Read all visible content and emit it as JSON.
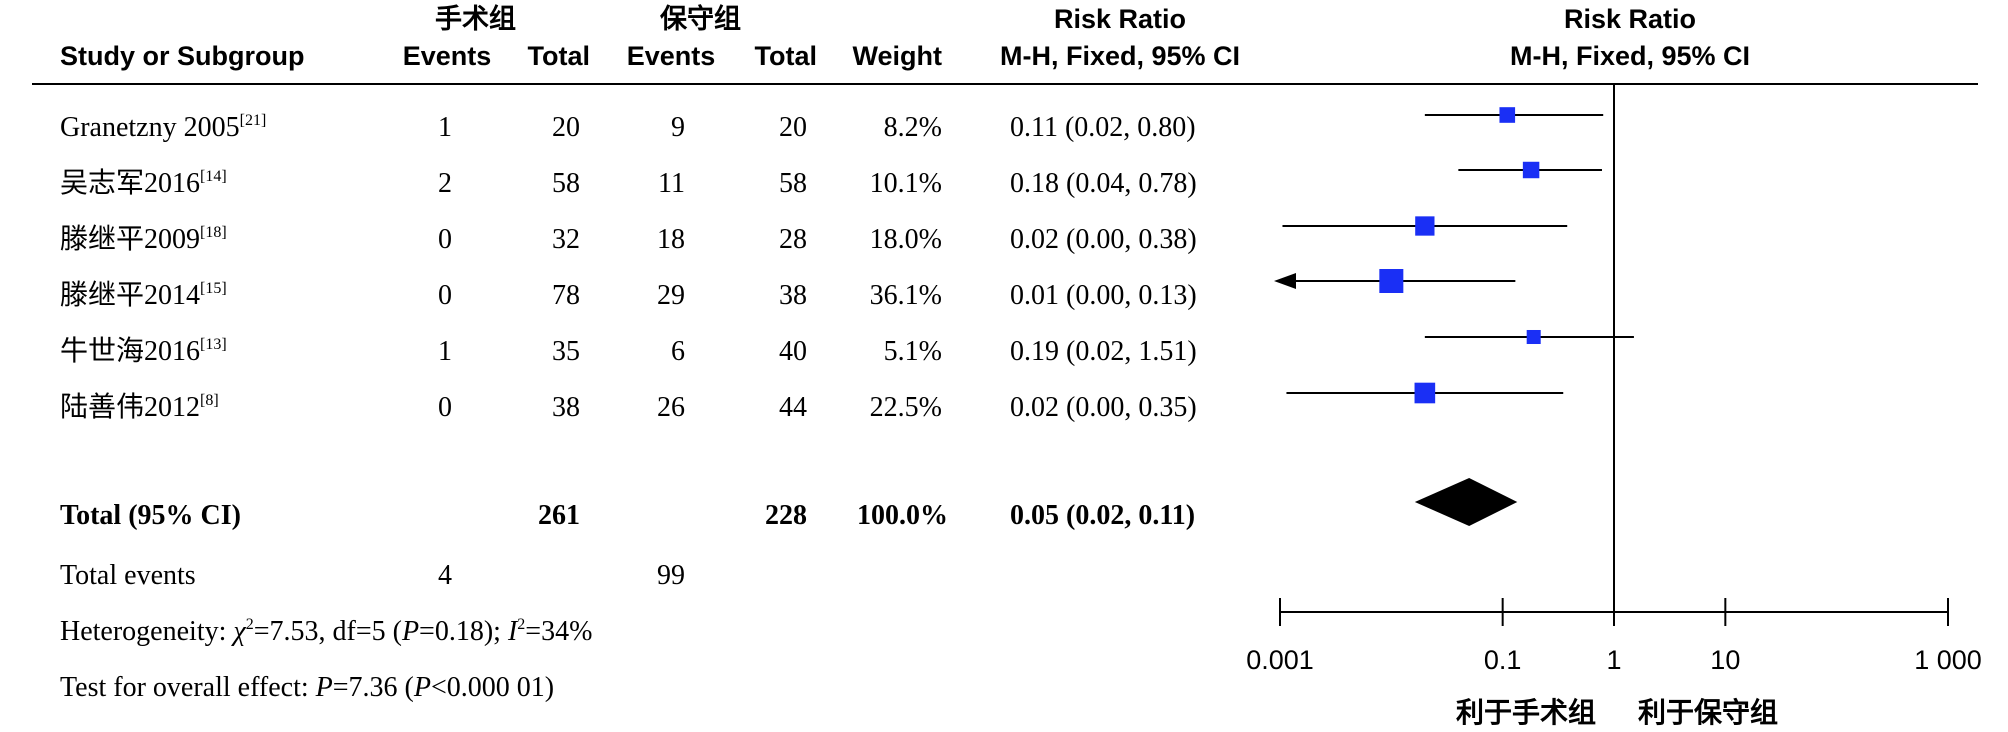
{
  "header": {
    "study": "Study or Subgroup",
    "group1": "手术组",
    "group2": "保守组",
    "events1": "Events",
    "total1": "Total",
    "events2": "Events",
    "total2": "Total",
    "weight": "Weight",
    "rr_title": "Risk Ratio",
    "rr_method": "M-H, Fixed, 95% CI",
    "plot_title": "Risk Ratio",
    "plot_method": "M-H, Fixed, 95% CI"
  },
  "studies": [
    {
      "name": "Granetzny 2005",
      "ref": "[21]",
      "e1": "1",
      "t1": "20",
      "e2": "9",
      "t2": "20",
      "weight": "8.2%",
      "ci_text": "0.11 (0.02, 0.80)"
    },
    {
      "name": "吴志军2016",
      "ref": "[14]",
      "e1": "2",
      "t1": "58",
      "e2": "11",
      "t2": "58",
      "weight": "10.1%",
      "ci_text": "0.18 (0.04, 0.78)"
    },
    {
      "name": "滕继平2009",
      "ref": "[18]",
      "e1": "0",
      "t1": "32",
      "e2": "18",
      "t2": "28",
      "weight": "18.0%",
      "ci_text": "0.02 (0.00, 0.38)"
    },
    {
      "name": "滕继平2014",
      "ref": "[15]",
      "e1": "0",
      "t1": "78",
      "e2": "29",
      "t2": "38",
      "weight": "36.1%",
      "ci_text": "0.01 (0.00, 0.13)"
    },
    {
      "name": "牛世海2016",
      "ref": "[13]",
      "e1": "1",
      "t1": "35",
      "e2": "6",
      "t2": "40",
      "weight": "5.1%",
      "ci_text": "0.19 (0.02, 1.51)"
    },
    {
      "name": "陆善伟2012",
      "ref": "[8]",
      "e1": "0",
      "t1": "38",
      "e2": "26",
      "t2": "44",
      "weight": "22.5%",
      "ci_text": "0.02 (0.00, 0.35)"
    }
  ],
  "total": {
    "label": "Total (95% CI)",
    "t1": "261",
    "t2": "228",
    "weight": "100.0%",
    "ci_text": "0.05 (0.02, 0.11)"
  },
  "total_events": {
    "label": "Total events",
    "e1": "4",
    "e2": "99"
  },
  "heterogeneity": {
    "prefix": "Heterogeneity: ",
    "chi_sym": "χ",
    "chi_sup": "2",
    "chi_val": "=7.53, df=5 (",
    "p_sym": "P",
    "p_val": "=0.18); ",
    "i_sym": "I",
    "i_sup": "2",
    "i_val": "=34%"
  },
  "overall": {
    "prefix": "Test for overall effect: ",
    "p_sym": "P",
    "p_val": "=7.36 (",
    "p2_sym": "P",
    "p2_val": "<0.000 01)"
  },
  "chart_data": {
    "type": "forest",
    "scale": "log",
    "xlim": [
      0.001,
      1000
    ],
    "ticks": [
      {
        "value": 0.001,
        "label": "0.001"
      },
      {
        "value": 0.1,
        "label": "0.1"
      },
      {
        "value": 1,
        "label": "1"
      },
      {
        "value": 10,
        "label": "10"
      },
      {
        "value": 1000,
        "label": "1 000"
      }
    ],
    "xlabel_left": "利于手术组",
    "xlabel_right": "利于保守组",
    "studies": [
      {
        "rr": 0.11,
        "lo": 0.02,
        "hi": 0.8,
        "weight": 8.2,
        "clipped": false
      },
      {
        "rr": 0.18,
        "lo": 0.04,
        "hi": 0.78,
        "weight": 10.1,
        "clipped": false
      },
      {
        "rr": 0.02,
        "lo": 0.0,
        "hi": 0.38,
        "weight": 18.0,
        "clipped": false
      },
      {
        "rr": 0.01,
        "lo": 0.0,
        "hi": 0.13,
        "weight": 36.1,
        "clipped": true
      },
      {
        "rr": 0.19,
        "lo": 0.02,
        "hi": 1.51,
        "weight": 5.1,
        "clipped": false
      },
      {
        "rr": 0.02,
        "lo": 0.0,
        "hi": 0.35,
        "weight": 22.5,
        "clipped": false
      }
    ],
    "pooled": {
      "rr": 0.05,
      "lo": 0.02,
      "hi": 0.11
    },
    "colors": {
      "square": "#1a2ff5",
      "line": "#000000",
      "diamond": "#000000"
    }
  }
}
